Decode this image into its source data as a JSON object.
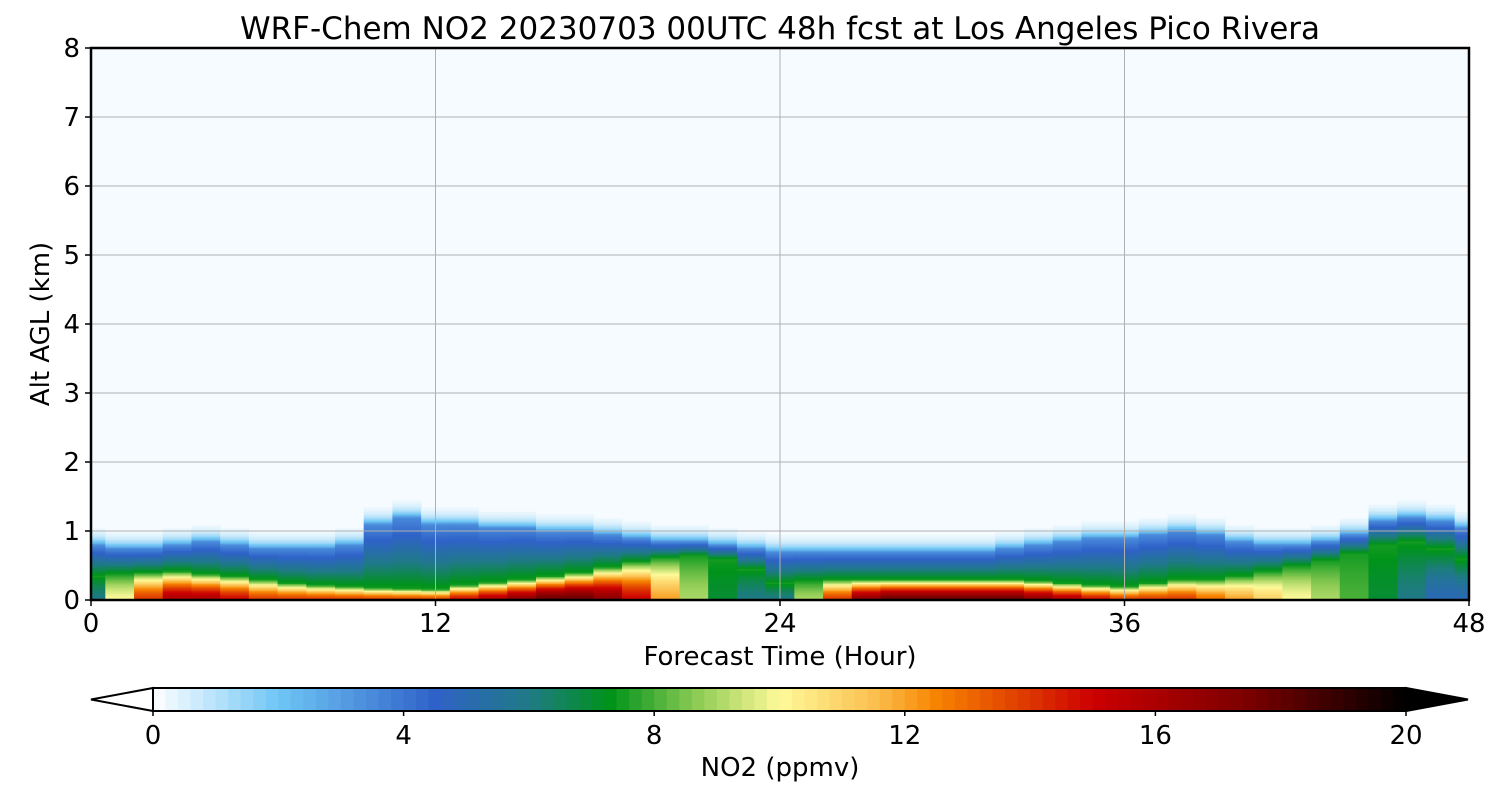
{
  "chart_data": {
    "type": "contour",
    "title": "WRF-Chem NO2  20230703 00UTC 48h fcst at Los Angeles Pico Rivera",
    "xlabel": "Forecast Time (Hour)",
    "ylabel": "Alt AGL (km)",
    "xlim": [
      0,
      48
    ],
    "ylim": [
      0,
      8
    ],
    "xticks": [
      0,
      12,
      24,
      36,
      48
    ],
    "yticks": [
      0,
      1,
      2,
      3,
      4,
      5,
      6,
      7,
      8
    ],
    "grid": true,
    "colorbar": {
      "label": "NO2  (ppmv)",
      "range": [
        0,
        20
      ],
      "ticks": [
        0,
        4,
        8,
        12,
        16,
        20
      ],
      "extend": "both",
      "stops": [
        {
          "v": 0,
          "c": "#ffffff"
        },
        {
          "v": 2,
          "c": "#6fc6f5"
        },
        {
          "v": 4.5,
          "c": "#2f62c8"
        },
        {
          "v": 6,
          "c": "#1f7a86"
        },
        {
          "v": 7.3,
          "c": "#00931a"
        },
        {
          "v": 8.7,
          "c": "#8fcc55"
        },
        {
          "v": 10,
          "c": "#fffa9a"
        },
        {
          "v": 11.5,
          "c": "#fbc050"
        },
        {
          "v": 12.5,
          "c": "#f78400"
        },
        {
          "v": 15,
          "c": "#cc0000"
        },
        {
          "v": 17.5,
          "c": "#7a0000"
        },
        {
          "v": 20,
          "c": "#000000"
        }
      ]
    },
    "times_h": [
      0,
      1,
      2,
      3,
      4,
      5,
      6,
      7,
      8,
      9,
      10,
      11,
      12,
      13,
      14,
      15,
      16,
      17,
      18,
      19,
      20,
      21,
      22,
      23,
      24,
      25,
      26,
      27,
      28,
      29,
      30,
      31,
      32,
      33,
      34,
      35,
      36,
      37,
      38,
      39,
      40,
      41,
      42,
      43,
      44,
      45,
      46,
      47,
      48
    ],
    "surface_no2_ppmv": [
      6,
      10,
      14,
      16,
      16,
      15,
      14,
      14,
      14,
      14,
      14,
      14,
      14,
      15,
      16,
      17,
      18,
      18,
      17,
      15,
      12,
      9,
      7,
      6,
      6,
      9,
      14,
      17,
      18,
      18,
      18,
      18,
      18,
      17,
      16,
      15,
      14,
      14,
      14,
      13,
      12,
      11,
      10,
      9,
      8,
      7,
      6,
      5,
      5
    ],
    "boundary_layer_top_km": [
      0.8,
      0.75,
      0.75,
      0.8,
      0.85,
      0.8,
      0.75,
      0.75,
      0.75,
      0.8,
      1.1,
      1.2,
      1.1,
      1.1,
      1.05,
      1.05,
      1.0,
      1.0,
      0.95,
      0.9,
      0.85,
      0.85,
      0.8,
      0.75,
      0.7,
      0.7,
      0.7,
      0.7,
      0.7,
      0.7,
      0.7,
      0.7,
      0.75,
      0.8,
      0.85,
      0.9,
      0.9,
      0.95,
      1.0,
      0.95,
      0.85,
      0.8,
      0.8,
      0.85,
      0.95,
      1.15,
      1.2,
      1.15,
      1.05
    ],
    "high_conc_layer_top_km": [
      0.35,
      0.38,
      0.4,
      0.42,
      0.38,
      0.35,
      0.3,
      0.25,
      0.22,
      0.2,
      0.18,
      0.17,
      0.16,
      0.22,
      0.26,
      0.3,
      0.35,
      0.4,
      0.48,
      0.56,
      0.62,
      0.65,
      0.6,
      0.45,
      0.25,
      0.28,
      0.3,
      0.3,
      0.3,
      0.3,
      0.3,
      0.3,
      0.3,
      0.28,
      0.25,
      0.22,
      0.2,
      0.25,
      0.3,
      0.3,
      0.35,
      0.42,
      0.5,
      0.58,
      0.68,
      0.8,
      0.85,
      0.75,
      0.6
    ]
  }
}
